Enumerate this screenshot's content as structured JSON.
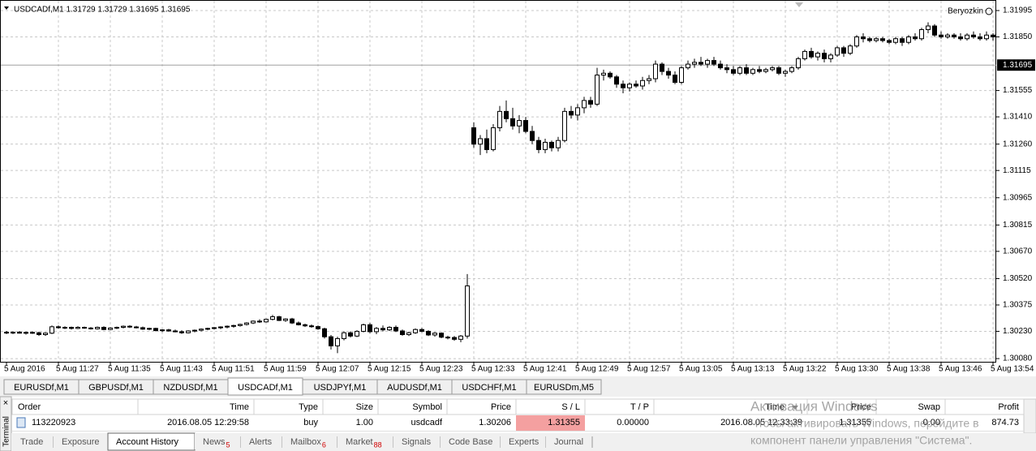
{
  "header": {
    "symbol_line": "USDCADf,M1  1.31729 1.31729 1.31695 1.31695",
    "account": "Beryozkin"
  },
  "chart_data": {
    "type": "candlestick",
    "candles": [
      [
        1.30225,
        1.30232,
        1.30215,
        1.30222
      ],
      [
        1.30222,
        1.3023,
        1.30215,
        1.30225
      ],
      [
        1.30225,
        1.30232,
        1.30218,
        1.3022
      ],
      [
        1.3022,
        1.30228,
        1.30212,
        1.30224
      ],
      [
        1.30224,
        1.3023,
        1.30216,
        1.30222
      ],
      [
        1.30222,
        1.30228,
        1.30205,
        1.30212
      ],
      [
        1.30212,
        1.30225,
        1.30205,
        1.3022
      ],
      [
        1.3022,
        1.30262,
        1.30215,
        1.30255
      ],
      [
        1.30255,
        1.30262,
        1.30245,
        1.3025
      ],
      [
        1.3025,
        1.30258,
        1.30242,
        1.30252
      ],
      [
        1.30252,
        1.30256,
        1.3024,
        1.30246
      ],
      [
        1.30246,
        1.30258,
        1.30242,
        1.30252
      ],
      [
        1.30252,
        1.30256,
        1.30244,
        1.30248
      ],
      [
        1.30248,
        1.30254,
        1.3024,
        1.30244
      ],
      [
        1.30244,
        1.30256,
        1.3024,
        1.30252
      ],
      [
        1.30252,
        1.30258,
        1.30236,
        1.3024
      ],
      [
        1.3024,
        1.30252,
        1.30236,
        1.30248
      ],
      [
        1.30248,
        1.30256,
        1.30242,
        1.30252
      ],
      [
        1.30252,
        1.30262,
        1.30246,
        1.30258
      ],
      [
        1.30258,
        1.30264,
        1.30248,
        1.30254
      ],
      [
        1.30254,
        1.3026,
        1.30246,
        1.3025
      ],
      [
        1.3025,
        1.30256,
        1.30238,
        1.30242
      ],
      [
        1.30242,
        1.3025,
        1.30236,
        1.30246
      ],
      [
        1.30246,
        1.3025,
        1.3023,
        1.30234
      ],
      [
        1.30234,
        1.30242,
        1.30226,
        1.30238
      ],
      [
        1.30238,
        1.30244,
        1.30228,
        1.30232
      ],
      [
        1.30232,
        1.3024,
        1.30224,
        1.30228
      ],
      [
        1.30228,
        1.30236,
        1.30216,
        1.30222
      ],
      [
        1.30222,
        1.30236,
        1.30218,
        1.30232
      ],
      [
        1.30232,
        1.3024,
        1.30224,
        1.30236
      ],
      [
        1.30236,
        1.30246,
        1.3023,
        1.30242
      ],
      [
        1.30242,
        1.3025,
        1.30236,
        1.30246
      ],
      [
        1.30246,
        1.30254,
        1.3024,
        1.3025
      ],
      [
        1.3025,
        1.30258,
        1.30242,
        1.30254
      ],
      [
        1.30254,
        1.30262,
        1.30246,
        1.30258
      ],
      [
        1.30258,
        1.30266,
        1.3025,
        1.30262
      ],
      [
        1.30262,
        1.30272,
        1.30256,
        1.30268
      ],
      [
        1.30268,
        1.3028,
        1.30262,
        1.30276
      ],
      [
        1.30276,
        1.3029,
        1.3027,
        1.30286
      ],
      [
        1.30286,
        1.30296,
        1.30276,
        1.30282
      ],
      [
        1.30282,
        1.303,
        1.30278,
        1.30296
      ],
      [
        1.30296,
        1.3032,
        1.3029,
        1.3031
      ],
      [
        1.3031,
        1.30316,
        1.30286,
        1.3029
      ],
      [
        1.3029,
        1.30302,
        1.30282,
        1.30298
      ],
      [
        1.30298,
        1.30304,
        1.3027,
        1.30276
      ],
      [
        1.30276,
        1.30284,
        1.30262,
        1.30266
      ],
      [
        1.30266,
        1.30272,
        1.30254,
        1.3026
      ],
      [
        1.3026,
        1.30268,
        1.3025,
        1.30256
      ],
      [
        1.30256,
        1.30262,
        1.30238,
        1.30244
      ],
      [
        1.30244,
        1.3025,
        1.3019,
        1.302
      ],
      [
        1.302,
        1.3021,
        1.3013,
        1.3015
      ],
      [
        1.3015,
        1.302,
        1.3011,
        1.3019
      ],
      [
        1.3019,
        1.3023,
        1.3018,
        1.30222
      ],
      [
        1.30222,
        1.3023,
        1.30196,
        1.30204
      ],
      [
        1.30204,
        1.30236,
        1.30198,
        1.3023
      ],
      [
        1.3023,
        1.30272,
        1.30224,
        1.30266
      ],
      [
        1.30266,
        1.30276,
        1.3022,
        1.30228
      ],
      [
        1.30228,
        1.30254,
        1.30214,
        1.30246
      ],
      [
        1.30246,
        1.30262,
        1.3023,
        1.30238
      ],
      [
        1.30238,
        1.30258,
        1.30232,
        1.30252
      ],
      [
        1.30252,
        1.30262,
        1.30226,
        1.30232
      ],
      [
        1.30232,
        1.3024,
        1.30206,
        1.30212
      ],
      [
        1.30212,
        1.30228,
        1.30204,
        1.30222
      ],
      [
        1.30222,
        1.30246,
        1.30216,
        1.3024
      ],
      [
        1.3024,
        1.30248,
        1.30224,
        1.3023
      ],
      [
        1.3023,
        1.30236,
        1.30204,
        1.3021
      ],
      [
        1.3021,
        1.30226,
        1.302,
        1.3022
      ],
      [
        1.3022,
        1.30224,
        1.30192,
        1.30198
      ],
      [
        1.30198,
        1.30206,
        1.30186,
        1.30196
      ],
      [
        1.30196,
        1.30204,
        1.30178,
        1.30186
      ],
      [
        1.30186,
        1.3021,
        1.3017,
        1.30204
      ],
      [
        1.30204,
        1.30545,
        1.3019,
        1.3048
      ],
      [
        1.3135,
        1.3138,
        1.3124,
        1.3126
      ],
      [
        1.3126,
        1.3131,
        1.312,
        1.3129
      ],
      [
        1.3129,
        1.3134,
        1.3121,
        1.3123
      ],
      [
        1.3123,
        1.3137,
        1.3122,
        1.3135
      ],
      [
        1.3135,
        1.3147,
        1.3133,
        1.3144
      ],
      [
        1.3144,
        1.315,
        1.3138,
        1.314
      ],
      [
        1.314,
        1.3146,
        1.3134,
        1.3136
      ],
      [
        1.3136,
        1.3142,
        1.3132,
        1.3139
      ],
      [
        1.3139,
        1.3141,
        1.3132,
        1.3133
      ],
      [
        1.3133,
        1.3136,
        1.3126,
        1.3128
      ],
      [
        1.3128,
        1.313,
        1.3121,
        1.3123
      ],
      [
        1.3123,
        1.3129,
        1.3121,
        1.3127
      ],
      [
        1.3127,
        1.3128,
        1.3122,
        1.3124
      ],
      [
        1.3124,
        1.313,
        1.3122,
        1.3128
      ],
      [
        1.3128,
        1.3146,
        1.3127,
        1.3144
      ],
      [
        1.3144,
        1.3147,
        1.314,
        1.3142
      ],
      [
        1.3142,
        1.3148,
        1.3139,
        1.3146
      ],
      [
        1.3146,
        1.3152,
        1.3143,
        1.315
      ],
      [
        1.315,
        1.3152,
        1.3146,
        1.3148
      ],
      [
        1.3148,
        1.3168,
        1.3147,
        1.3164
      ],
      [
        1.3164,
        1.3167,
        1.3161,
        1.3165
      ],
      [
        1.3165,
        1.3166,
        1.3162,
        1.3163
      ],
      [
        1.3163,
        1.3164,
        1.3157,
        1.3159
      ],
      [
        1.3159,
        1.3161,
        1.3154,
        1.3157
      ],
      [
        1.3157,
        1.316,
        1.3155,
        1.3159
      ],
      [
        1.3159,
        1.3161,
        1.3157,
        1.3158
      ],
      [
        1.3158,
        1.3163,
        1.3156,
        1.3161
      ],
      [
        1.3161,
        1.3164,
        1.3159,
        1.3162
      ],
      [
        1.3162,
        1.3172,
        1.316,
        1.317
      ],
      [
        1.317,
        1.3171,
        1.3164,
        1.3166
      ],
      [
        1.3166,
        1.3168,
        1.3162,
        1.3164
      ],
      [
        1.3164,
        1.3166,
        1.3159,
        1.316
      ],
      [
        1.316,
        1.3169,
        1.3159,
        1.3168
      ],
      [
        1.3168,
        1.3172,
        1.3167,
        1.317
      ],
      [
        1.317,
        1.3173,
        1.3168,
        1.3171
      ],
      [
        1.3171,
        1.3174,
        1.3169,
        1.317
      ],
      [
        1.317,
        1.3173,
        1.3168,
        1.3172
      ],
      [
        1.3172,
        1.3174,
        1.3169,
        1.317
      ],
      [
        1.317,
        1.3172,
        1.3167,
        1.3168
      ],
      [
        1.3168,
        1.317,
        1.3165,
        1.3167
      ],
      [
        1.3167,
        1.3169,
        1.3164,
        1.3165
      ],
      [
        1.3165,
        1.3169,
        1.3164,
        1.3168
      ],
      [
        1.3168,
        1.317,
        1.3164,
        1.3165
      ],
      [
        1.3165,
        1.3168,
        1.3164,
        1.3167
      ],
      [
        1.3167,
        1.3169,
        1.3165,
        1.3166
      ],
      [
        1.3166,
        1.3168,
        1.3165,
        1.3167
      ],
      [
        1.3167,
        1.3169,
        1.3166,
        1.3168
      ],
      [
        1.3168,
        1.3169,
        1.3164,
        1.3165
      ],
      [
        1.3165,
        1.3167,
        1.3163,
        1.3166
      ],
      [
        1.3166,
        1.3169,
        1.3165,
        1.3168
      ],
      [
        1.3168,
        1.3174,
        1.3167,
        1.3173
      ],
      [
        1.3173,
        1.3178,
        1.3172,
        1.3177
      ],
      [
        1.3177,
        1.3179,
        1.3173,
        1.3174
      ],
      [
        1.3174,
        1.3177,
        1.3172,
        1.3176
      ],
      [
        1.3176,
        1.3178,
        1.3171,
        1.3173
      ],
      [
        1.3173,
        1.3176,
        1.3171,
        1.3175
      ],
      [
        1.3175,
        1.318,
        1.3174,
        1.3179
      ],
      [
        1.3179,
        1.318,
        1.3174,
        1.3176
      ],
      [
        1.3176,
        1.3181,
        1.3175,
        1.318
      ],
      [
        1.318,
        1.3186,
        1.3179,
        1.3185
      ],
      [
        1.3185,
        1.3187,
        1.3182,
        1.3184
      ],
      [
        1.3184,
        1.3185,
        1.3182,
        1.3183
      ],
      [
        1.3183,
        1.3185,
        1.3182,
        1.3184
      ],
      [
        1.3184,
        1.3185,
        1.3182,
        1.3183
      ],
      [
        1.3183,
        1.3184,
        1.3181,
        1.3182
      ],
      [
        1.3182,
        1.3185,
        1.3181,
        1.3184
      ],
      [
        1.3184,
        1.3185,
        1.318,
        1.3182
      ],
      [
        1.3182,
        1.3186,
        1.3181,
        1.3185
      ],
      [
        1.3185,
        1.3187,
        1.3183,
        1.3184
      ],
      [
        1.3184,
        1.319,
        1.3183,
        1.3189
      ],
      [
        1.3189,
        1.3193,
        1.3187,
        1.3191
      ],
      [
        1.3191,
        1.3192,
        1.3185,
        1.3186
      ],
      [
        1.3186,
        1.3188,
        1.3184,
        1.3185
      ],
      [
        1.3185,
        1.3187,
        1.3184,
        1.3186
      ],
      [
        1.3186,
        1.3187,
        1.3184,
        1.3185
      ],
      [
        1.3185,
        1.3187,
        1.3183,
        1.3184
      ],
      [
        1.3184,
        1.3187,
        1.3183,
        1.3186
      ],
      [
        1.3186,
        1.3188,
        1.3184,
        1.3185
      ],
      [
        1.3185,
        1.3187,
        1.3183,
        1.3184
      ],
      [
        1.3184,
        1.3188,
        1.3183,
        1.3186
      ],
      [
        1.3186,
        1.3187,
        1.3183,
        1.3185
      ]
    ],
    "ylim": [
      1.30058,
      1.32053
    ],
    "yticks": [
      1.31995,
      {
        "value": 1.3185,
        "label": "1.31850"
      },
      1.31555,
      {
        "value": 1.3141,
        "label": "1.31410"
      },
      {
        "value": 1.3126,
        "label": "1.31260"
      },
      1.31115,
      1.30965,
      1.30815,
      {
        "value": 1.3067,
        "label": "1.30670"
      },
      {
        "value": 1.3052,
        "label": "1.30520"
      },
      1.30375,
      {
        "value": 1.3023,
        "label": "1.30230"
      },
      {
        "value": 1.3008,
        "label": "1.30080"
      }
    ],
    "current_price": 1.31695,
    "x_labels": [
      "5 Aug 2016",
      "5 Aug 11:27",
      "5 Aug 11:35",
      "5 Aug 11:43",
      "5 Aug 11:51",
      "5 Aug 11:59",
      "5 Aug 12:07",
      "5 Aug 12:15",
      "5 Aug 12:23",
      "5 Aug 12:33",
      "5 Aug 12:41",
      "5 Aug 12:49",
      "5 Aug 12:57",
      "5 Aug 13:05",
      "5 Aug 13:13",
      "5 Aug 13:22",
      "5 Aug 13:30",
      "5 Aug 13:38",
      "5 Aug 13:46",
      "5 Aug 13:54"
    ],
    "grid": true,
    "up_color": "#ffffff",
    "down_color": "#000000"
  },
  "symbol_tabs": [
    "EURUSDf,M1",
    "GBPUSDf,M1",
    "NZDUSDf,M1",
    "USDCADf,M1",
    "USDJPYf,M1",
    "AUDUSDf,M1",
    "USDCHFf,M1",
    "EURUSDm,M5"
  ],
  "active_symbol_tab": 3,
  "side_label": "Terminal",
  "table": {
    "columns": [
      "Order",
      "Time",
      "Type",
      "Size",
      "Symbol",
      "Price",
      "S / L",
      "T / P",
      "Time",
      "Price",
      "Swap",
      "Profit"
    ],
    "rows": [
      [
        "113220923",
        "2016.08.05 12:29:58",
        "buy",
        "1.00",
        "usdcadf",
        "1.30206",
        "1.31355",
        "0.00000",
        "2016.08.05 12:33:39",
        "1.31355",
        "0.00",
        "874.73"
      ]
    ]
  },
  "bottom_tabs": [
    {
      "label": "Trade"
    },
    {
      "label": "Exposure"
    },
    {
      "label": "Account History"
    },
    {
      "label": "News",
      "badge": "5"
    },
    {
      "label": "Alerts"
    },
    {
      "label": "Mailbox",
      "badge": "6"
    },
    {
      "label": "Market",
      "badge": "88"
    },
    {
      "label": "Signals"
    },
    {
      "label": "Code Base"
    },
    {
      "label": "Experts"
    },
    {
      "label": "Journal"
    }
  ],
  "active_bottom_tab": 2,
  "watermark": [
    "Активация Windows",
    "Чтобы активировать Windows, перейдите в",
    "компонент панели управления \"Система\"."
  ]
}
